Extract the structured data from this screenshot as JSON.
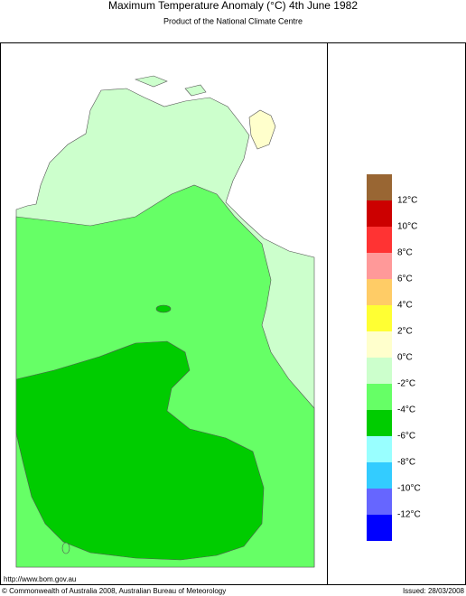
{
  "header": {
    "title": "Maximum Temperature Anomaly (°C)  4th June 1982",
    "subtitle": "Product of the National Climate Centre"
  },
  "legend": {
    "labels": [
      "12°C",
      "10°C",
      "8°C",
      "6°C",
      "4°C",
      "2°C",
      "0°C",
      "-2°C",
      "-4°C",
      "-6°C",
      "-8°C",
      "-10°C",
      "-12°C"
    ],
    "colors": [
      "#996633",
      "#cc0000",
      "#ff3333",
      "#ff9999",
      "#ffcc66",
      "#ffff33",
      "#ffffcc",
      "#ccffcc",
      "#66ff66",
      "#00cc00",
      "#99ffff",
      "#33ccff",
      "#6666ff",
      "#0000ff"
    ]
  },
  "footer": {
    "url": "http://www.bom.gov.au",
    "copyright": "© Commonwealth of Australia 2008, Australian Bureau of Meteorology",
    "issued": "Issued: 28/03/2008"
  }
}
